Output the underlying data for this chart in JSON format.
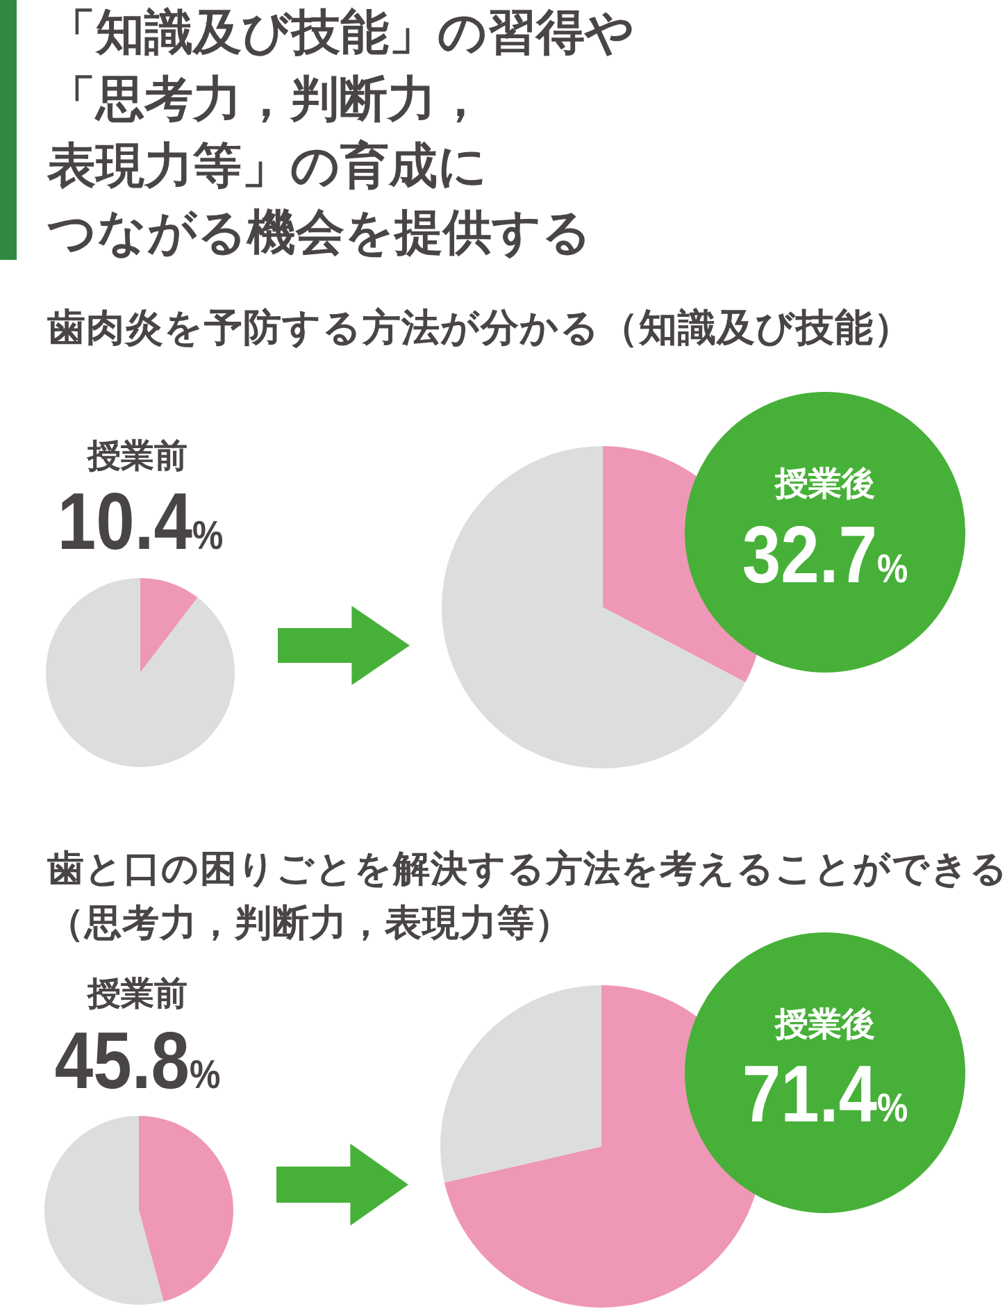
{
  "chart_data": [
    {
      "type": "other",
      "title": "「知識及び技能」の習得や「思考力，判断力，表現力等」の育成につながる機会を提供する"
    },
    {
      "type": "other",
      "title": "歯肉炎を予防する方法が分かる（知識及び技能）"
    },
    {
      "type": "pie",
      "title": "授業前",
      "categories": [
        null,
        null
      ],
      "values": [
        10.4,
        89.6
      ],
      "colors": [
        "#ef97b6",
        "#dcdedd"
      ],
      "value_labels": [
        "10.4%",
        null
      ]
    },
    {
      "type": "pie",
      "title": "授業後",
      "categories": [
        null,
        null
      ],
      "values": [
        32.7,
        67.3
      ],
      "colors": [
        "#ef97b6",
        "#dcdedd"
      ],
      "value_labels": [
        "32.7%",
        null
      ]
    },
    {
      "type": "other",
      "title": "歯と口の困りごとを解決する方法を考えることができる（思考力，判断力，表現力等）"
    },
    {
      "type": "pie",
      "title": "授業前",
      "categories": [
        null,
        null
      ],
      "values": [
        45.8,
        54.2
      ],
      "colors": [
        "#ef97b6",
        "#dcdedd"
      ],
      "value_labels": [
        "45.8%",
        null
      ]
    },
    {
      "type": "pie",
      "title": "授業後",
      "categories": [
        null,
        null
      ],
      "values": [
        71.4,
        28.6
      ],
      "colors": [
        "#ef97b6",
        "#dcdedd"
      ],
      "value_labels": [
        "71.4%",
        null
      ]
    }
  ]
}
